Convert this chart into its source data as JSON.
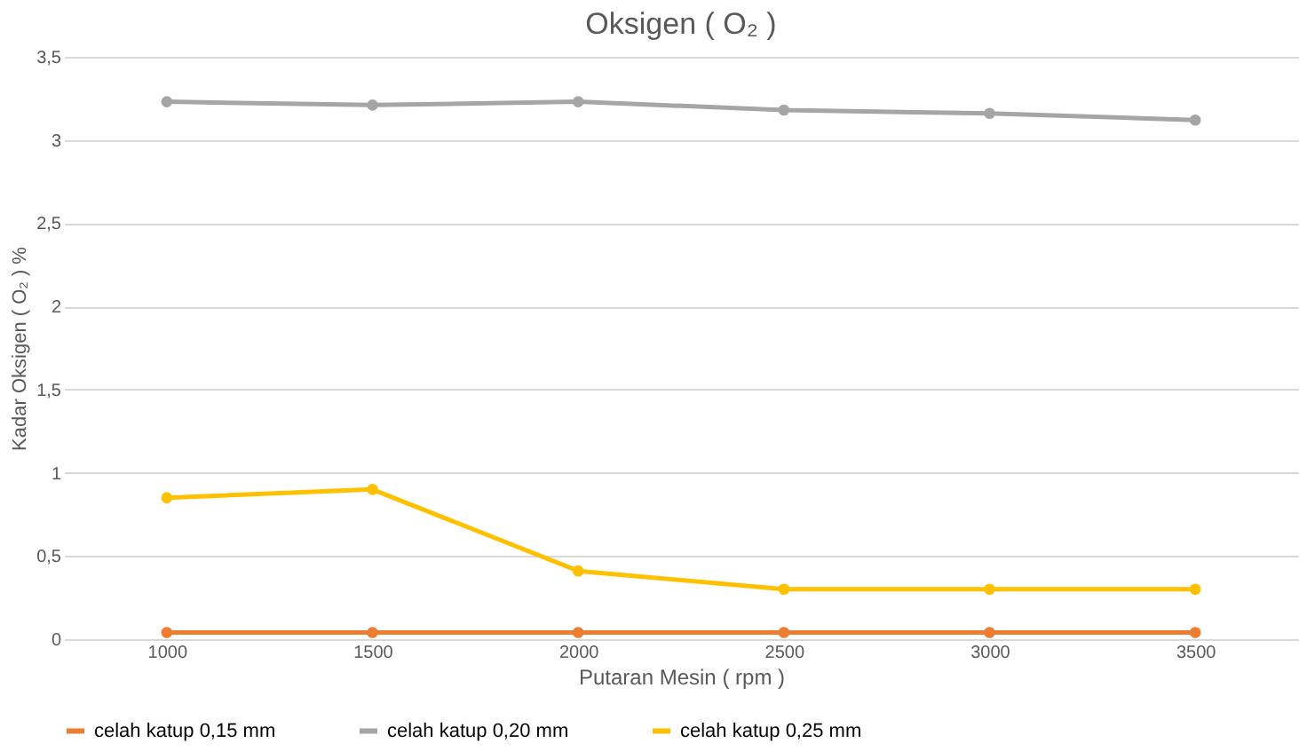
{
  "chart_data": {
    "type": "line",
    "title": "Oksigen ( O₂ )",
    "xlabel": "Putaran Mesin ( rpm )",
    "ylabel": "Kadar Oksigen ( O₂ ) %",
    "categories": [
      "1000",
      "1500",
      "2000",
      "2500",
      "3000",
      "3500"
    ],
    "series": [
      {
        "name": "celah katup 0,15 mm",
        "color": "#ed7d31",
        "values": [
          0.04,
          0.04,
          0.04,
          0.04,
          0.04,
          0.04
        ]
      },
      {
        "name": "celah katup 0,20 mm",
        "color": "#a5a5a5",
        "values": [
          3.23,
          3.21,
          3.23,
          3.18,
          3.16,
          3.12
        ]
      },
      {
        "name": "celah katup 0,25 mm",
        "color": "#ffc000",
        "values": [
          0.85,
          0.9,
          0.41,
          0.3,
          0.3,
          0.3
        ]
      }
    ],
    "ylim": [
      0,
      3.5
    ],
    "yticks": [
      0,
      {
        "value": 0.5,
        "label": "0,5"
      },
      1,
      {
        "value": 1.5,
        "label": "1,5"
      },
      2,
      {
        "value": 2.5,
        "label": "2,5"
      },
      3,
      {
        "value": 3.5,
        "label": "3,5"
      }
    ],
    "grid": "y",
    "legend": "bottom",
    "marker": "circle",
    "line_style": "solid"
  }
}
